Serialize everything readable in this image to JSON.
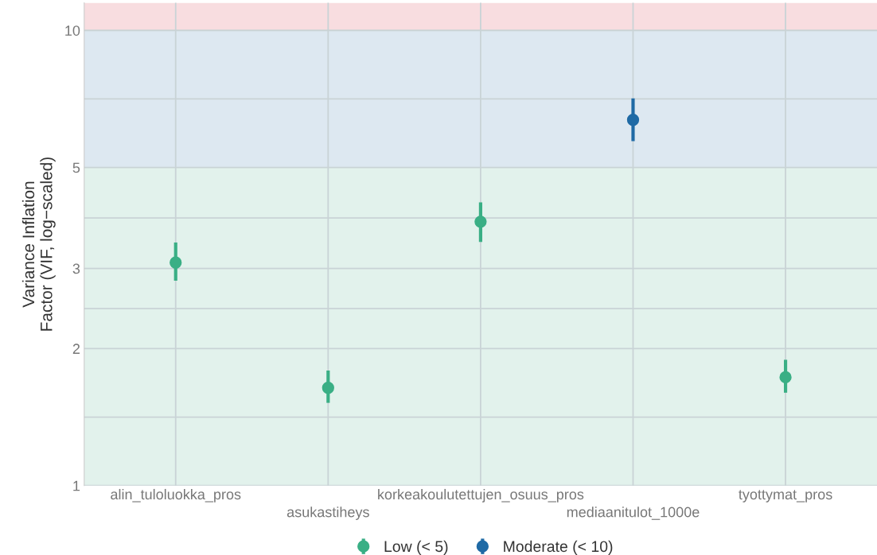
{
  "chart_data": {
    "type": "scatter",
    "ylabel": "Variance Inflation\nFactor (VIF, log−scaled)",
    "categories": [
      "alin_tuloluokka_pros",
      "asukastiheys",
      "korkeakoulutettujen_osuus_pros",
      "mediaanitulot_1000e",
      "tyottymat_pros"
    ],
    "series": [
      {
        "name": "Low (< 5)",
        "color": "#3aaf85",
        "values": [
          3.09,
          1.64,
          3.8,
          null,
          1.73
        ],
        "errors": [
          [
            2.82,
            3.42
          ],
          [
            1.52,
            1.79
          ],
          [
            3.43,
            4.19
          ],
          null,
          [
            1.6,
            1.89
          ]
        ]
      },
      {
        "name": "Moderate (< 10)",
        "color": "#1f6aa5",
        "values": [
          null,
          null,
          null,
          6.36,
          null
        ],
        "errors": [
          null,
          null,
          null,
          [
            5.71,
            7.09
          ],
          null
        ]
      }
    ],
    "log": true,
    "ylim": [
      1,
      11.5
    ],
    "yticks": [
      1,
      {
        "value": 1.414,
        "label": null
      },
      2,
      {
        "value": 2.449,
        "label": null
      },
      3,
      {
        "value": 3.873,
        "label": null
      },
      5,
      {
        "value": 7.071,
        "label": null
      },
      10
    ],
    "bands": [
      {
        "axis": "y",
        "from": 1,
        "to": 5,
        "label": null,
        "color": "#e2f2ec"
      },
      {
        "axis": "y",
        "from": 5,
        "to": 10,
        "label": null,
        "color": "#dde8f1"
      },
      {
        "axis": "y",
        "from": 10,
        "to": 11.5,
        "label": null,
        "color": "#f8dde0"
      }
    ],
    "grid": true,
    "legend": "bottom",
    "marker": "circle"
  }
}
